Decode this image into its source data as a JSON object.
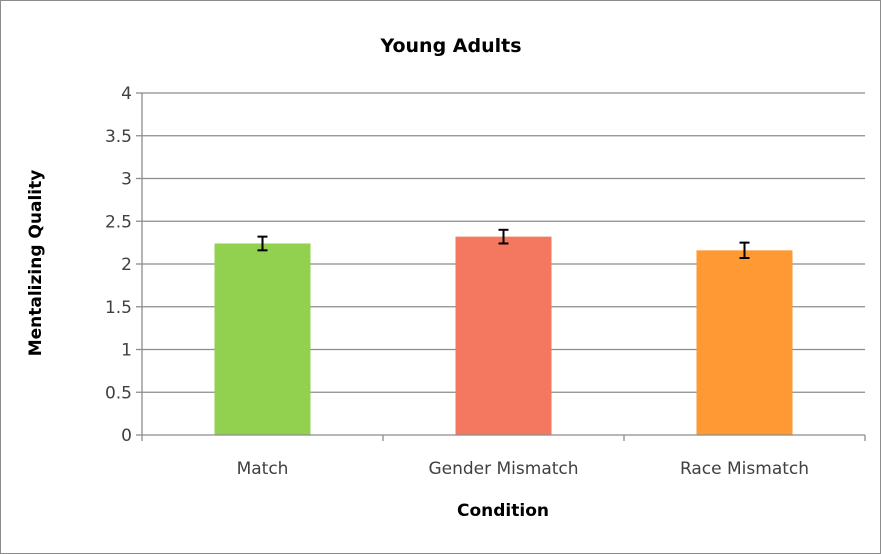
{
  "chart_data": {
    "type": "bar",
    "title": "Young Adults",
    "xlabel": "Condition",
    "ylabel": "Mentalizing Quality",
    "ylim": [
      0,
      4
    ],
    "yticks": [
      "0",
      "0.5",
      "1",
      "1.5",
      "2",
      "2.5",
      "3",
      "3.5",
      "4"
    ],
    "grid": true,
    "categories": [
      "Match",
      "Gender Mismatch",
      "Race Mismatch"
    ],
    "values": [
      2.24,
      2.32,
      2.16
    ],
    "error": [
      0.08,
      0.08,
      0.09
    ],
    "colors": [
      "#92d050",
      "#f4775f",
      "#ff9933"
    ]
  }
}
